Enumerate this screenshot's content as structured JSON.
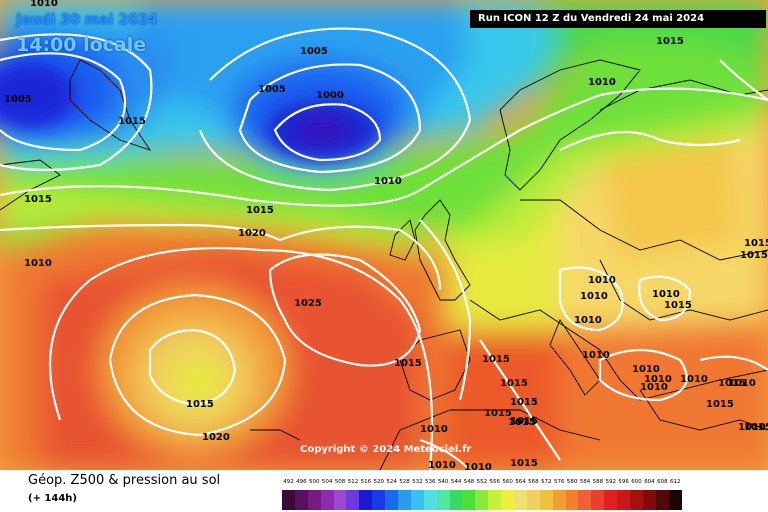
{
  "header": {
    "date_line": "Jeudi 30 mai 2024",
    "time_line": "14:00 locale",
    "run_info": "Run ICON 12 Z du Vendredi 24 mai 2024"
  },
  "copyright": "Copyright © 2024 Meteociel.fr",
  "footer": {
    "title": "Géop. Z500 & pression au sol",
    "subtitle": "(+ 144h)"
  },
  "legend": [
    {
      "label": "492",
      "color": "#3a0a3a"
    },
    {
      "label": "496",
      "color": "#5a1060"
    },
    {
      "label": "500",
      "color": "#7a1a80"
    },
    {
      "label": "504",
      "color": "#8c2ab0"
    },
    {
      "label": "508",
      "color": "#9b4ad0"
    },
    {
      "label": "512",
      "color": "#6a3ae0"
    },
    {
      "label": "516",
      "color": "#1a1ad0"
    },
    {
      "label": "520",
      "color": "#1a3ae8"
    },
    {
      "label": "524",
      "color": "#1a6af0"
    },
    {
      "label": "528",
      "color": "#2a9af0"
    },
    {
      "label": "532",
      "color": "#3ac0f0"
    },
    {
      "label": "536",
      "color": "#50e0e0"
    },
    {
      "label": "540",
      "color": "#50e8a0"
    },
    {
      "label": "544",
      "color": "#3ad860"
    },
    {
      "label": "548",
      "color": "#4ae03a"
    },
    {
      "label": "552",
      "color": "#8ae83a"
    },
    {
      "label": "556",
      "color": "#c8f03a"
    },
    {
      "label": "560",
      "color": "#f0f03a"
    },
    {
      "label": "564",
      "color": "#f0e070"
    },
    {
      "label": "568",
      "color": "#f0d060"
    },
    {
      "label": "572",
      "color": "#f0c040"
    },
    {
      "label": "576",
      "color": "#f0a030"
    },
    {
      "label": "580",
      "color": "#f08030"
    },
    {
      "label": "584",
      "color": "#f06030"
    },
    {
      "label": "588",
      "color": "#e84030"
    },
    {
      "label": "592",
      "color": "#e02020"
    },
    {
      "label": "596",
      "color": "#c81818"
    },
    {
      "label": "600",
      "color": "#a81010"
    },
    {
      "label": "604",
      "color": "#800a0a"
    },
    {
      "label": "608",
      "color": "#500808"
    },
    {
      "label": "612",
      "color": "#1a0505"
    }
  ],
  "isobar_labels": [
    "1010",
    "1005",
    "1005",
    "1015",
    "1005",
    "1000",
    "1015",
    "1015",
    "1010",
    "1015",
    "1020",
    "1010",
    "1025",
    "1015",
    "1020",
    "1015",
    "1010",
    "1015",
    "1015",
    "1015",
    "1015",
    "1015",
    "1010",
    "1010",
    "1010",
    "1010",
    "1010",
    "1010",
    "1015",
    "1010",
    "1010",
    "1010",
    "1010",
    "1015",
    "1015",
    "1010",
    "1015",
    "1010",
    "1010",
    "1010",
    "1015",
    "1015",
    "1015",
    "1015"
  ]
}
